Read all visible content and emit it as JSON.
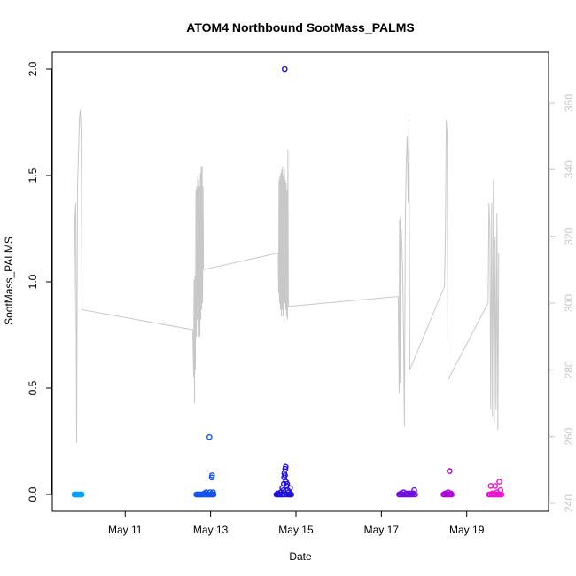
{
  "chart_data": {
    "type": "scatter",
    "title": "ATOM4 Northbound SootMass_PALMS",
    "xlabel": "Date",
    "ylabel": "SootMass_PALMS",
    "ylim": [
      0,
      2.0
    ],
    "y2lim": [
      240,
      360
    ],
    "xlim_days": [
      "May 9 15:00",
      "May 20 15:00"
    ],
    "x_ticks": [
      "May 11",
      "May 13",
      "May 15",
      "May 17",
      "May 19"
    ],
    "y_ticks": [
      "0.0",
      "0.5",
      "1.0",
      "1.5",
      "2.0"
    ],
    "y2_ticks": [
      "240",
      "260",
      "280",
      "300",
      "320",
      "340",
      "360"
    ],
    "grid": false,
    "series": [
      {
        "color": "#00a0ff",
        "points": [
          [
            "May 9 19:30",
            0.0
          ],
          [
            "May 9 20:00",
            0.0
          ],
          [
            "May 9 20:30",
            0.0
          ],
          [
            "May 9 21:00",
            0.0
          ],
          [
            "May 9 21:30",
            0.0
          ],
          [
            "May 9 22:00",
            0.0
          ],
          [
            "May 9 22:30",
            0.0
          ],
          [
            "May 9 23:00",
            0.0
          ],
          [
            "May 9 23:30",
            0.0
          ]
        ]
      },
      {
        "color": "#1050ff",
        "points": [
          [
            "May 12 16:00",
            0.0
          ],
          [
            "May 12 16:30",
            0.0
          ],
          [
            "May 12 17:00",
            0.0
          ],
          [
            "May 12 17:30",
            0.0
          ],
          [
            "May 12 18:00",
            0.0
          ],
          [
            "May 12 18:30",
            0.0
          ],
          [
            "May 12 19:00",
            0.0
          ],
          [
            "May 12 19:30",
            0.0
          ],
          [
            "May 12 20:00",
            0.0
          ],
          [
            "May 12 20:30",
            0.005
          ],
          [
            "May 12 21:00",
            0.0
          ],
          [
            "May 12 21:30",
            0.01
          ],
          [
            "May 12 22:00",
            0.0
          ],
          [
            "May 12 22:30",
            0.0
          ],
          [
            "May 12 23:00",
            0.0
          ],
          [
            "May 12 23:20",
            0.27
          ],
          [
            "May 12 23:40",
            0.01
          ],
          [
            "May 13 0:00",
            0.0
          ],
          [
            "May 13 0:30",
            0.0
          ],
          [
            "May 13 0:40",
            0.08
          ],
          [
            "May 13 0:50",
            0.09
          ],
          [
            "May 13 1:00",
            0.0
          ],
          [
            "May 13 1:20",
            0.01
          ],
          [
            "May 13 1:40",
            0.0
          ]
        ]
      },
      {
        "color": "#2010e0",
        "points": [
          [
            "May 14 13:00",
            0.0
          ],
          [
            "May 14 13:30",
            0.0
          ],
          [
            "May 14 14:00",
            0.005
          ],
          [
            "May 14 14:30",
            0.0
          ],
          [
            "May 14 15:00",
            0.0
          ],
          [
            "May 14 15:30",
            0.01
          ],
          [
            "May 14 16:00",
            0.0
          ],
          [
            "May 14 16:20",
            0.03
          ],
          [
            "May 14 16:40",
            0.0
          ],
          [
            "May 14 17:00",
            0.02
          ],
          [
            "May 14 17:10",
            0.05
          ],
          [
            "May 14 17:20",
            0.08
          ],
          [
            "May 14 17:30",
            0.1
          ],
          [
            "May 14 17:40",
            2.0
          ],
          [
            "May 14 17:50",
            0.09
          ],
          [
            "May 14 18:00",
            0.12
          ],
          [
            "May 14 18:10",
            0.13
          ],
          [
            "May 14 18:20",
            0.06
          ],
          [
            "May 14 18:30",
            0.0
          ],
          [
            "May 14 18:40",
            0.04
          ],
          [
            "May 14 19:00",
            0.05
          ],
          [
            "May 14 19:20",
            0.02
          ],
          [
            "May 14 19:40",
            0.0
          ],
          [
            "May 14 20:00",
            0.01
          ],
          [
            "May 14 20:20",
            0.0
          ],
          [
            "May 14 20:40",
            0.03
          ],
          [
            "May 14 21:00",
            0.0
          ],
          [
            "May 14 21:20",
            0.0
          ]
        ]
      },
      {
        "color": "#7010e0",
        "points": [
          [
            "May 17 10:00",
            0.0
          ],
          [
            "May 17 10:30",
            0.0
          ],
          [
            "May 17 11:00",
            0.005
          ],
          [
            "May 17 11:30",
            0.0
          ],
          [
            "May 17 12:00",
            0.0
          ],
          [
            "May 17 12:30",
            0.01
          ],
          [
            "May 17 13:00",
            0.0
          ],
          [
            "May 17 13:30",
            0.0
          ],
          [
            "May 17 14:00",
            0.005
          ],
          [
            "May 17 14:30",
            0.0
          ],
          [
            "May 17 15:00",
            0.0
          ],
          [
            "May 17 15:30",
            0.005
          ],
          [
            "May 17 16:00",
            0.0
          ],
          [
            "May 17 16:30",
            0.0
          ],
          [
            "May 17 17:00",
            0.005
          ],
          [
            "May 17 17:30",
            0.0
          ],
          [
            "May 17 18:00",
            0.005
          ],
          [
            "May 17 18:30",
            0.02
          ],
          [
            "May 17 19:00",
            0.0
          ]
        ]
      },
      {
        "color": "#b000e0",
        "points": [
          [
            "May 18 11:00",
            0.0
          ],
          [
            "May 18 11:30",
            0.0
          ],
          [
            "May 18 12:00",
            0.005
          ],
          [
            "May 18 12:30",
            0.0
          ],
          [
            "May 18 13:00",
            0.0
          ],
          [
            "May 18 13:30",
            0.01
          ],
          [
            "May 18 14:00",
            0.0
          ],
          [
            "May 18 14:20",
            0.11
          ],
          [
            "May 18 14:40",
            0.0
          ],
          [
            "May 18 15:00",
            0.005
          ],
          [
            "May 18 15:30",
            0.0
          ]
        ]
      },
      {
        "color": "#f010d0",
        "points": [
          [
            "May 19 12:30",
            0.0
          ],
          [
            "May 19 13:00",
            0.0
          ],
          [
            "May 19 13:30",
            0.04
          ],
          [
            "May 19 14:00",
            0.0
          ],
          [
            "May 19 14:30",
            0.005
          ],
          [
            "May 19 15:00",
            0.0
          ],
          [
            "May 19 15:30",
            0.0
          ],
          [
            "May 19 16:00",
            0.04
          ],
          [
            "May 19 16:30",
            0.0
          ],
          [
            "May 19 17:00",
            0.01
          ],
          [
            "May 19 17:30",
            0.0
          ],
          [
            "May 19 18:00",
            0.0
          ],
          [
            "May 19 18:20",
            0.06
          ],
          [
            "May 19 18:40",
            0.0
          ],
          [
            "May 19 19:00",
            0.02
          ],
          [
            "May 19 19:30",
            0.0
          ]
        ]
      }
    ],
    "secondary_line": {
      "color": "#c8c8c8",
      "points": [
        [
          "May 9 19:15",
          293
        ],
        [
          "May 9 19:45",
          325
        ],
        [
          "May 9 20:15",
          330
        ],
        [
          "May 9 20:45",
          258
        ],
        [
          "May 9 21:15",
          335
        ],
        [
          "May 9 21:45",
          345
        ],
        [
          "May 9 22:15",
          355
        ],
        [
          "May 9 22:45",
          358
        ],
        [
          "May 9 23:15",
          350
        ],
        [
          "May 9 23:45",
          298
        ],
        [
          "May 12 14:00",
          292
        ],
        [
          "May 12 14:30",
          278
        ],
        [
          "May 12 14:45",
          307
        ],
        [
          "May 12 15:00",
          270
        ],
        [
          "May 12 15:15",
          308
        ],
        [
          "May 12 15:30",
          280
        ],
        [
          "May 12 15:45",
          334
        ],
        [
          "May 12 16:00",
          290
        ],
        [
          "May 12 16:15",
          335
        ],
        [
          "May 12 16:30",
          295
        ],
        [
          "May 12 16:45",
          338
        ],
        [
          "May 12 17:00",
          296
        ],
        [
          "May 12 17:15",
          337
        ],
        [
          "May 12 17:30",
          290
        ],
        [
          "May 12 17:45",
          335
        ],
        [
          "May 12 18:00",
          290
        ],
        [
          "May 12 18:15",
          339
        ],
        [
          "May 12 18:30",
          295
        ],
        [
          "May 12 18:45",
          341
        ],
        [
          "May 12 19:00",
          298
        ],
        [
          "May 12 19:15",
          341
        ],
        [
          "May 12 19:30",
          300
        ],
        [
          "May 12 19:45",
          335
        ],
        [
          "May 12 20:00",
          310
        ],
        [
          "May 14 14:00",
          315
        ],
        [
          "May 14 14:15",
          303
        ],
        [
          "May 14 14:30",
          337
        ],
        [
          "May 14 14:45",
          300
        ],
        [
          "May 14 15:00",
          338
        ],
        [
          "May 14 15:15",
          298
        ],
        [
          "May 14 15:30",
          339
        ],
        [
          "May 14 15:45",
          296
        ],
        [
          "May 14 16:00",
          340
        ],
        [
          "May 14 16:15",
          298
        ],
        [
          "May 14 16:30",
          341
        ],
        [
          "May 14 16:45",
          296
        ],
        [
          "May 14 17:00",
          338
        ],
        [
          "May 14 17:15",
          294
        ],
        [
          "May 14 17:30",
          340
        ],
        [
          "May 14 17:45",
          300
        ],
        [
          "May 14 18:00",
          337
        ],
        [
          "May 14 18:15",
          298
        ],
        [
          "May 14 18:30",
          336
        ],
        [
          "May 14 18:45",
          296
        ],
        [
          "May 14 19:00",
          334
        ],
        [
          "May 14 19:15",
          295
        ],
        [
          "May 14 19:30",
          346
        ],
        [
          "May 14 19:45",
          299
        ],
        [
          "May 17 9:30",
          302
        ],
        [
          "May 17 10:00",
          273
        ],
        [
          "May 17 10:15",
          325
        ],
        [
          "May 17 10:30",
          276
        ],
        [
          "May 17 10:45",
          326
        ],
        [
          "May 17 11:00",
          319
        ],
        [
          "May 17 11:15",
          322
        ],
        [
          "May 17 11:30",
          318
        ],
        [
          "May 17 12:00",
          310
        ],
        [
          "May 17 12:30",
          291
        ],
        [
          "May 17 13:00",
          263
        ],
        [
          "May 17 13:30",
          325
        ],
        [
          "May 17 14:00",
          342
        ],
        [
          "May 17 14:30",
          350
        ],
        [
          "May 17 15:00",
          330
        ],
        [
          "May 17 15:30",
          355
        ],
        [
          "May 17 16:00",
          280
        ],
        [
          "May 18 11:30",
          305
        ],
        [
          "May 18 12:00",
          320
        ],
        [
          "May 18 12:30",
          355
        ],
        [
          "May 18 13:00",
          350
        ],
        [
          "May 18 13:30",
          277
        ],
        [
          "May 19 12:00",
          300
        ],
        [
          "May 19 12:30",
          330
        ],
        [
          "May 19 13:00",
          322
        ],
        [
          "May 19 13:30",
          268
        ],
        [
          "May 19 14:00",
          330
        ],
        [
          "May 19 14:30",
          266
        ],
        [
          "May 19 15:00",
          337
        ],
        [
          "May 19 15:30",
          264
        ],
        [
          "May 19 16:00",
          320
        ],
        [
          "May 19 16:30",
          268
        ],
        [
          "May 19 17:00",
          327
        ],
        [
          "May 19 17:30",
          262
        ],
        [
          "May 19 18:00",
          315
        ]
      ]
    }
  }
}
